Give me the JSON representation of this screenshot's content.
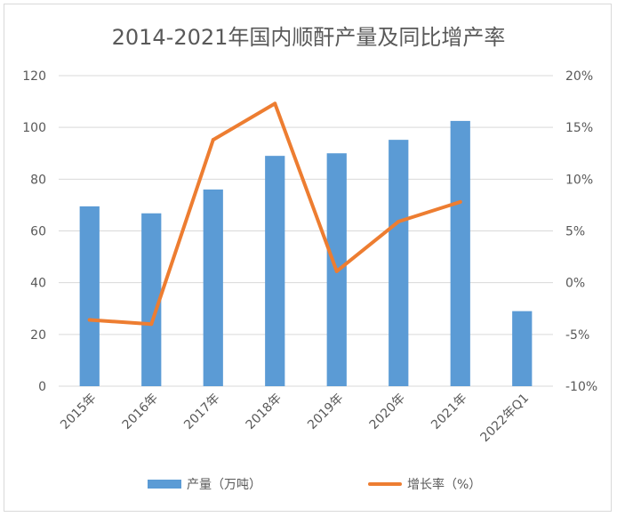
{
  "chart_data": {
    "type": "bar",
    "title": "2014-2021年国内顺酐产量及同比增产率",
    "categories": [
      "2015年",
      "2016年",
      "2017年",
      "2018年",
      "2019年",
      "2020年",
      "2021年",
      "2022年Q1"
    ],
    "series": [
      {
        "name": "产量（万吨）",
        "type": "bar",
        "axis": "left",
        "color": "#5b9bd5",
        "values": [
          69.5,
          66.8,
          76,
          89,
          90,
          95.2,
          102.5,
          29
        ]
      },
      {
        "name": "增长率（%）",
        "type": "line",
        "axis": "right",
        "color": "#ed7d31",
        "values": [
          -3.6,
          -4.0,
          13.8,
          17.3,
          1.1,
          5.9,
          7.8,
          null
        ]
      }
    ],
    "y_left": {
      "min": 0,
      "max": 120,
      "step": 20,
      "ticks": [
        "0",
        "20",
        "40",
        "60",
        "80",
        "100",
        "120"
      ]
    },
    "y_right": {
      "min": -10,
      "max": 20,
      "step": 5,
      "ticks": [
        "-10%",
        "-5%",
        "0%",
        "5%",
        "10%",
        "15%",
        "20%"
      ]
    },
    "grid": true,
    "legend_position": "bottom"
  }
}
